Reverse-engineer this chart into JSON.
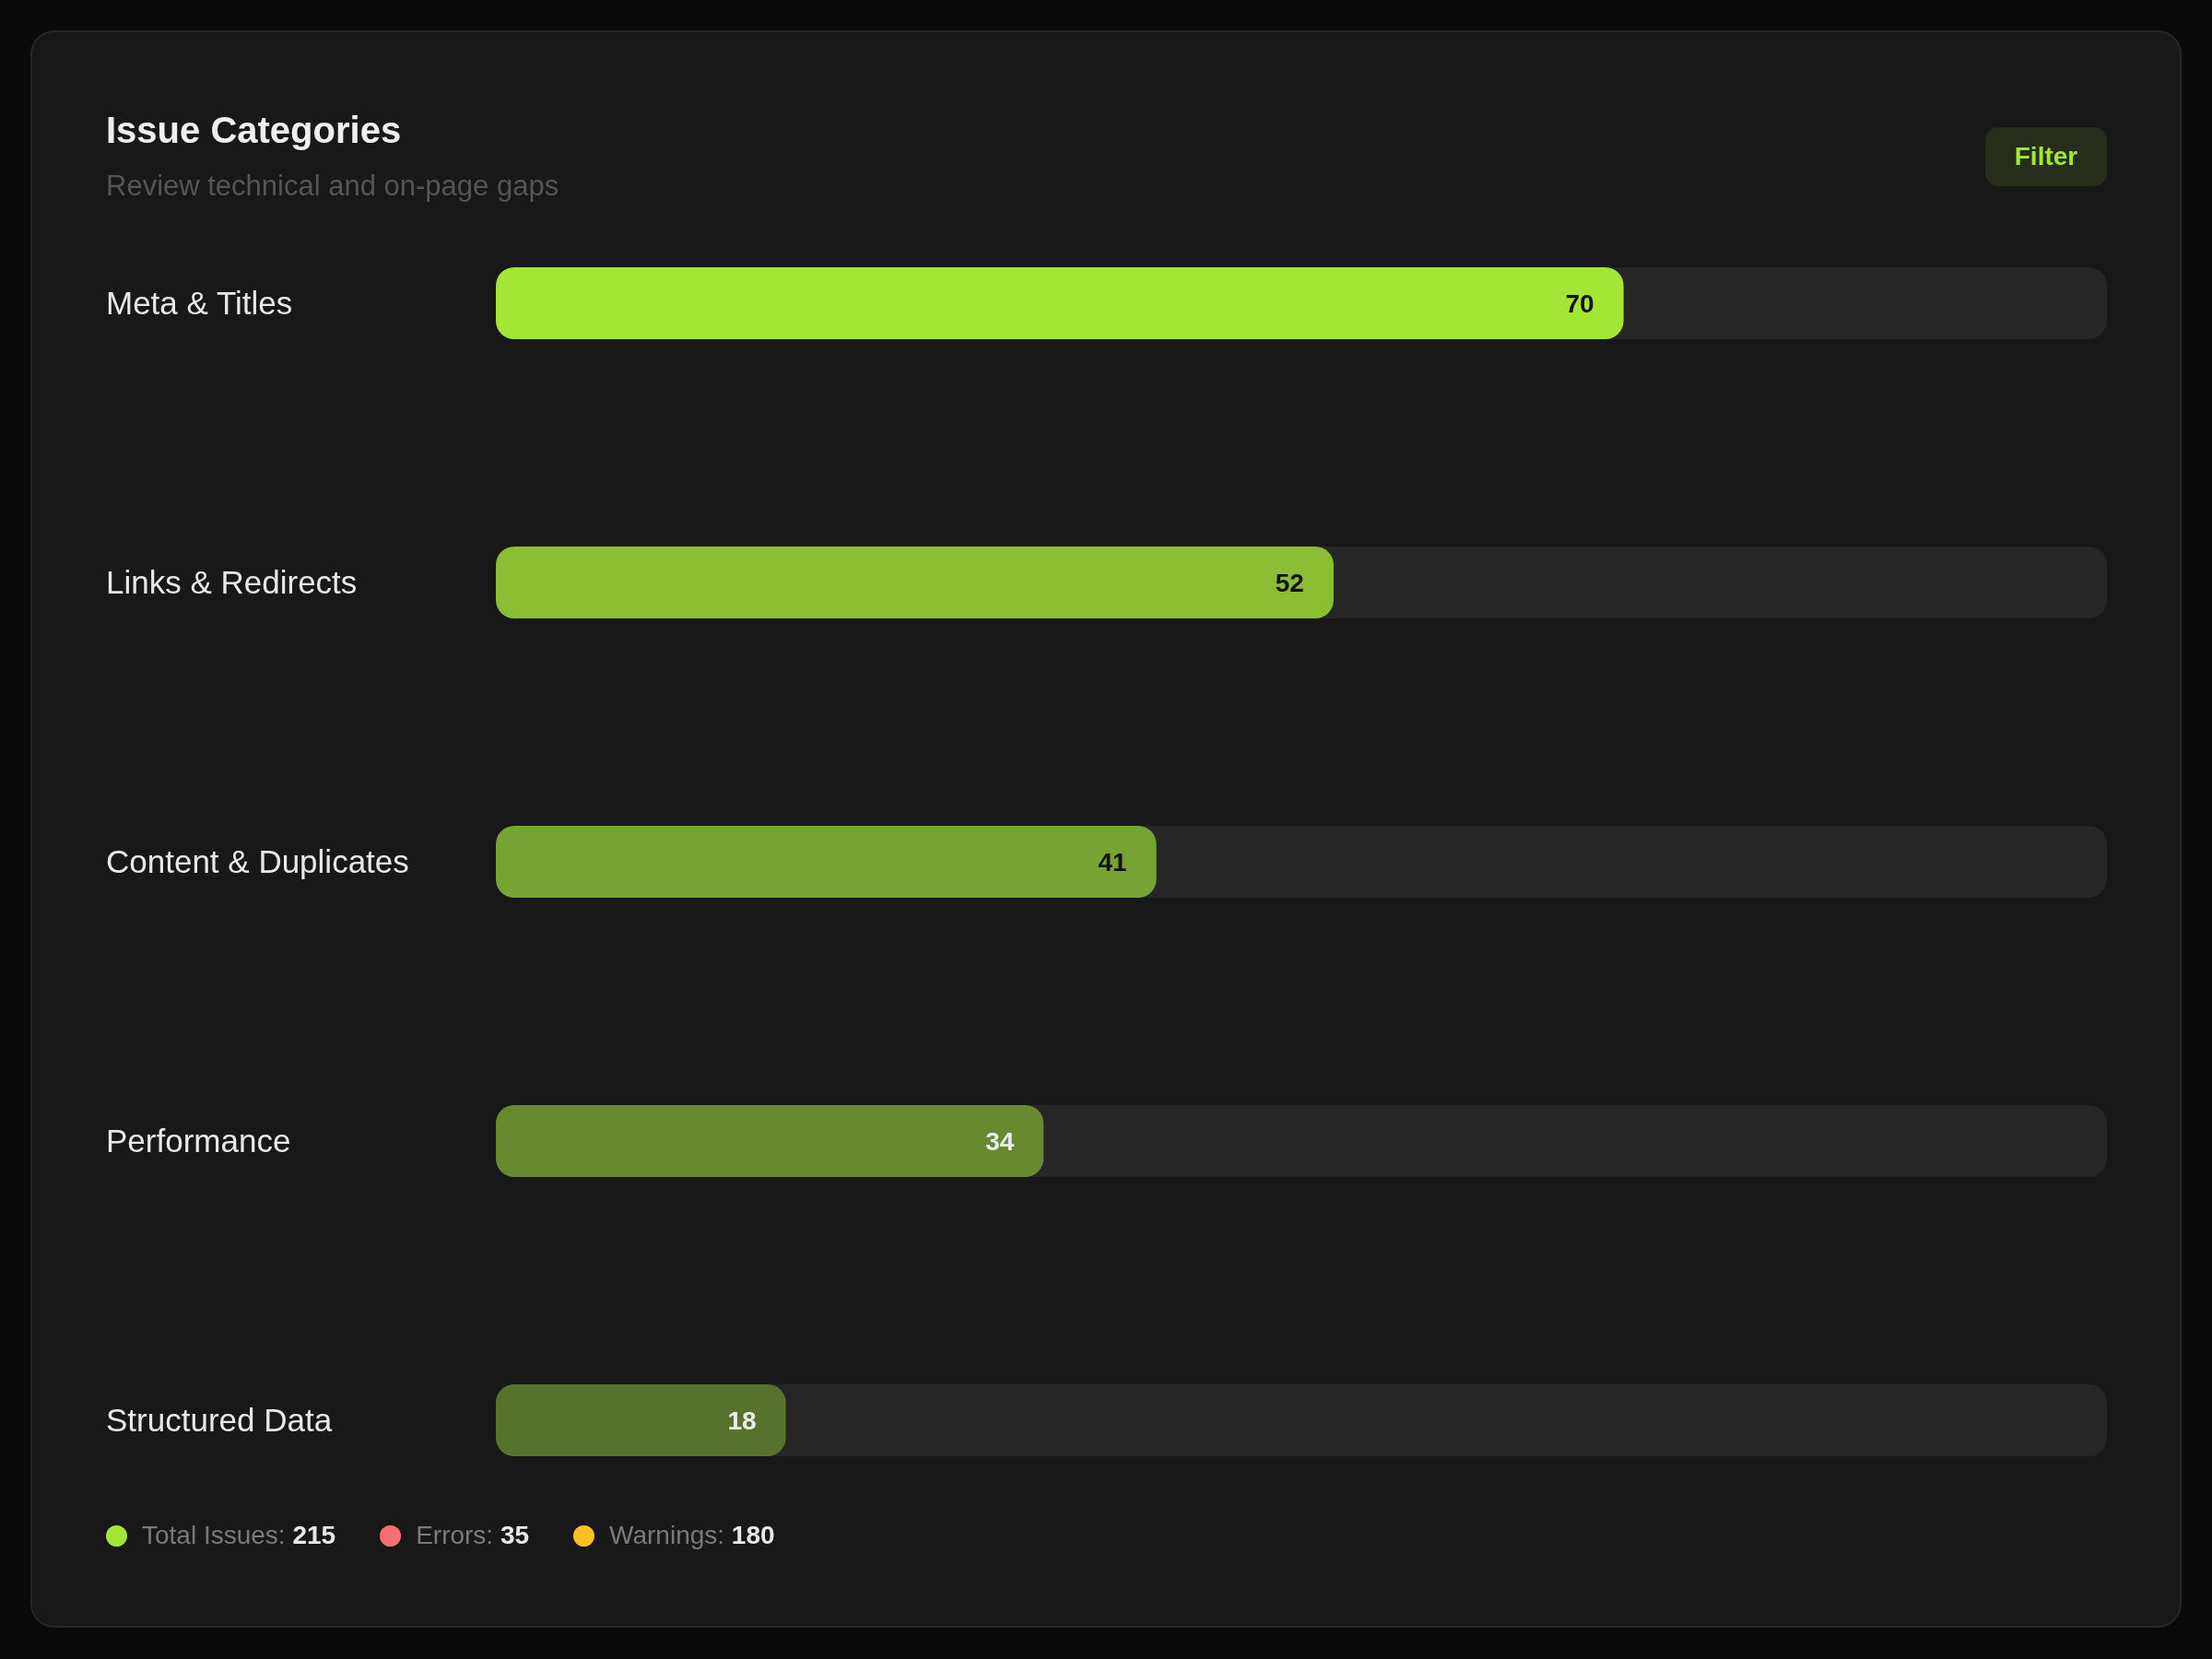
{
  "chart_data": {
    "type": "bar",
    "orientation": "horizontal",
    "title": "Issue Categories",
    "subtitle": "Review technical and on-page gaps",
    "categories": [
      "Meta & Titles",
      "Links & Redirects",
      "Content & Duplicates",
      "Performance",
      "Structured Data"
    ],
    "values": [
      70,
      52,
      41,
      34,
      18
    ],
    "colors": [
      "#a3e635",
      "#8bbe32",
      "#76a432",
      "#678a31",
      "#58722c"
    ],
    "xlim": [
      0,
      100
    ],
    "tick_labels": "y",
    "data_labels": true,
    "annotations": [
      "Filter",
      "Total Issues: 215",
      "Errors: 35",
      "Warnings: 180"
    ]
  }
}
